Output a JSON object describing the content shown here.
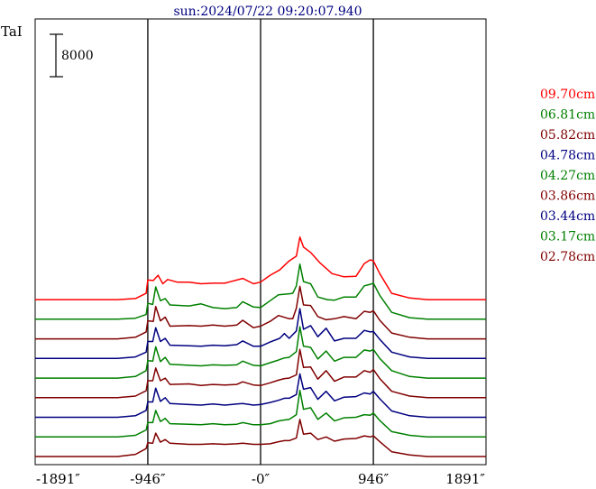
{
  "chart_data": {
    "type": "line",
    "title": "sun:2024/07/22 09:20:07.940",
    "ylabel": "TaI",
    "scale_bar_label": "8000",
    "scale_bar_value": 8000,
    "x_ticks": [
      {
        "value": -1891,
        "label": "-1891″"
      },
      {
        "value": -946,
        "label": "-946″"
      },
      {
        "value": 0,
        "label": "-0″"
      },
      {
        "value": 946,
        "label": "946″"
      },
      {
        "value": 1891,
        "label": "1891″"
      }
    ],
    "xlim": [
      -1891,
      1891
    ],
    "vertical_lines": [
      -946,
      0,
      946
    ],
    "x_hidden_labels": "spectrum offsets are drawn stacked; each successive series is shifted upward",
    "series": [
      {
        "name": "09.70cm",
        "color": "#ff0000",
        "profile": "p1"
      },
      {
        "name": "06.81cm",
        "color": "#008000",
        "profile": "p2"
      },
      {
        "name": "05.82cm",
        "color": "#800000",
        "profile": "p3"
      },
      {
        "name": "04.78cm",
        "color": "#000080",
        "profile": "p4"
      },
      {
        "name": "04.27cm",
        "color": "#008000",
        "profile": "p5"
      },
      {
        "name": "03.86cm",
        "color": "#800000",
        "profile": "p6"
      },
      {
        "name": "03.44cm",
        "color": "#000080",
        "profile": "p7"
      },
      {
        "name": "03.17cm",
        "color": "#008000",
        "profile": "p8"
      },
      {
        "name": "02.78cm",
        "color": "#800000",
        "profile": "p9"
      }
    ],
    "profiles": {
      "p1": [
        [
          -1891,
          0
        ],
        [
          -1200,
          0
        ],
        [
          -1050,
          200
        ],
        [
          -960,
          1200
        ],
        [
          -946,
          3700
        ],
        [
          -900,
          3600
        ],
        [
          -860,
          4600
        ],
        [
          -820,
          3000
        ],
        [
          -780,
          3800
        ],
        [
          -700,
          3300
        ],
        [
          -600,
          3300
        ],
        [
          -500,
          3000
        ],
        [
          -400,
          3100
        ],
        [
          -300,
          3100
        ],
        [
          -150,
          4000
        ],
        [
          -60,
          3000
        ],
        [
          0,
          3300
        ],
        [
          80,
          4600
        ],
        [
          160,
          5600
        ],
        [
          240,
          7300
        ],
        [
          300,
          8200
        ],
        [
          330,
          11800
        ],
        [
          360,
          9900
        ],
        [
          420,
          8900
        ],
        [
          500,
          6900
        ],
        [
          600,
          4900
        ],
        [
          700,
          4300
        ],
        [
          800,
          4400
        ],
        [
          870,
          6800
        ],
        [
          920,
          7500
        ],
        [
          946,
          7300
        ],
        [
          1000,
          4900
        ],
        [
          1100,
          1200
        ],
        [
          1250,
          300
        ],
        [
          1400,
          0
        ],
        [
          1891,
          0
        ]
      ],
      "p2": [
        [
          -1891,
          0
        ],
        [
          -1200,
          0
        ],
        [
          -1050,
          200
        ],
        [
          -960,
          900
        ],
        [
          -946,
          3000
        ],
        [
          -905,
          2800
        ],
        [
          -880,
          6100
        ],
        [
          -840,
          3500
        ],
        [
          -800,
          3900
        ],
        [
          -760,
          2700
        ],
        [
          -600,
          2500
        ],
        [
          -500,
          2900
        ],
        [
          -400,
          2200
        ],
        [
          -300,
          2000
        ],
        [
          -200,
          2200
        ],
        [
          -150,
          3300
        ],
        [
          -60,
          2300
        ],
        [
          0,
          2200
        ],
        [
          80,
          3500
        ],
        [
          150,
          4600
        ],
        [
          240,
          4800
        ],
        [
          270,
          4900
        ],
        [
          300,
          6300
        ],
        [
          330,
          10400
        ],
        [
          360,
          7100
        ],
        [
          420,
          6700
        ],
        [
          480,
          4200
        ],
        [
          560,
          3700
        ],
        [
          620,
          3600
        ],
        [
          700,
          4200
        ],
        [
          800,
          4200
        ],
        [
          870,
          6300
        ],
        [
          920,
          6600
        ],
        [
          946,
          6800
        ],
        [
          1000,
          4500
        ],
        [
          1100,
          1300
        ],
        [
          1250,
          300
        ],
        [
          1400,
          0
        ],
        [
          1891,
          0
        ]
      ],
      "p3": [
        [
          -1891,
          0
        ],
        [
          -1200,
          0
        ],
        [
          -1050,
          300
        ],
        [
          -960,
          1300
        ],
        [
          -946,
          3400
        ],
        [
          -900,
          3300
        ],
        [
          -880,
          6100
        ],
        [
          -840,
          3400
        ],
        [
          -800,
          4100
        ],
        [
          -760,
          2400
        ],
        [
          -600,
          2500
        ],
        [
          -500,
          2400
        ],
        [
          -400,
          2600
        ],
        [
          -300,
          2400
        ],
        [
          -200,
          2600
        ],
        [
          -150,
          3500
        ],
        [
          -60,
          2100
        ],
        [
          0,
          2400
        ],
        [
          80,
          3300
        ],
        [
          150,
          4400
        ],
        [
          240,
          3800
        ],
        [
          270,
          3800
        ],
        [
          300,
          5800
        ],
        [
          330,
          9900
        ],
        [
          360,
          6400
        ],
        [
          420,
          6300
        ],
        [
          480,
          4200
        ],
        [
          550,
          3600
        ],
        [
          620,
          3800
        ],
        [
          700,
          4200
        ],
        [
          800,
          3800
        ],
        [
          870,
          5200
        ],
        [
          920,
          5000
        ],
        [
          946,
          5300
        ],
        [
          1000,
          3500
        ],
        [
          1100,
          1100
        ],
        [
          1250,
          300
        ],
        [
          1400,
          0
        ],
        [
          1891,
          0
        ]
      ],
      "p4": [
        [
          -1891,
          0
        ],
        [
          -1200,
          0
        ],
        [
          -1050,
          300
        ],
        [
          -960,
          1200
        ],
        [
          -946,
          3200
        ],
        [
          -905,
          3200
        ],
        [
          -880,
          5800
        ],
        [
          -840,
          3200
        ],
        [
          -800,
          3800
        ],
        [
          -760,
          2500
        ],
        [
          -600,
          2400
        ],
        [
          -500,
          2300
        ],
        [
          -400,
          2500
        ],
        [
          -300,
          2400
        ],
        [
          -200,
          2600
        ],
        [
          -150,
          3300
        ],
        [
          -60,
          2300
        ],
        [
          0,
          2300
        ],
        [
          80,
          3100
        ],
        [
          160,
          3800
        ],
        [
          200,
          4700
        ],
        [
          240,
          3800
        ],
        [
          300,
          5200
        ],
        [
          330,
          9400
        ],
        [
          360,
          5500
        ],
        [
          420,
          6200
        ],
        [
          480,
          4100
        ],
        [
          550,
          5700
        ],
        [
          620,
          3300
        ],
        [
          700,
          3800
        ],
        [
          800,
          3800
        ],
        [
          870,
          5300
        ],
        [
          920,
          5000
        ],
        [
          946,
          5100
        ],
        [
          1000,
          3600
        ],
        [
          1100,
          1200
        ],
        [
          1250,
          300
        ],
        [
          1400,
          0
        ],
        [
          1891,
          0
        ]
      ],
      "p5": [
        [
          -1891,
          0
        ],
        [
          -1200,
          0
        ],
        [
          -1050,
          300
        ],
        [
          -960,
          1400
        ],
        [
          -946,
          3300
        ],
        [
          -905,
          3200
        ],
        [
          -880,
          5900
        ],
        [
          -840,
          3100
        ],
        [
          -800,
          3900
        ],
        [
          -760,
          2600
        ],
        [
          -600,
          2400
        ],
        [
          -500,
          2300
        ],
        [
          -400,
          2500
        ],
        [
          -300,
          2400
        ],
        [
          -200,
          2500
        ],
        [
          -150,
          3200
        ],
        [
          -60,
          2400
        ],
        [
          0,
          2300
        ],
        [
          80,
          2900
        ],
        [
          150,
          3400
        ],
        [
          200,
          3800
        ],
        [
          240,
          3900
        ],
        [
          300,
          5000
        ],
        [
          330,
          9700
        ],
        [
          360,
          6000
        ],
        [
          420,
          5800
        ],
        [
          480,
          3600
        ],
        [
          550,
          5100
        ],
        [
          620,
          3200
        ],
        [
          700,
          3900
        ],
        [
          800,
          3900
        ],
        [
          870,
          5300
        ],
        [
          920,
          5100
        ],
        [
          946,
          5400
        ],
        [
          1000,
          3700
        ],
        [
          1100,
          1400
        ],
        [
          1250,
          300
        ],
        [
          1400,
          0
        ],
        [
          1891,
          0
        ]
      ],
      "p6": [
        [
          -1891,
          0
        ],
        [
          -1200,
          0
        ],
        [
          -1050,
          300
        ],
        [
          -960,
          1300
        ],
        [
          -946,
          3200
        ],
        [
          -905,
          3200
        ],
        [
          -880,
          5600
        ],
        [
          -840,
          3200
        ],
        [
          -800,
          3700
        ],
        [
          -760,
          2500
        ],
        [
          -600,
          2600
        ],
        [
          -500,
          2300
        ],
        [
          -400,
          2500
        ],
        [
          -300,
          2400
        ],
        [
          -200,
          2500
        ],
        [
          -150,
          3000
        ],
        [
          -60,
          2400
        ],
        [
          0,
          2300
        ],
        [
          80,
          2800
        ],
        [
          150,
          3300
        ],
        [
          200,
          3600
        ],
        [
          240,
          3700
        ],
        [
          300,
          4300
        ],
        [
          330,
          9100
        ],
        [
          360,
          5700
        ],
        [
          420,
          5800
        ],
        [
          480,
          3500
        ],
        [
          550,
          5100
        ],
        [
          620,
          3100
        ],
        [
          700,
          3900
        ],
        [
          800,
          3900
        ],
        [
          870,
          5100
        ],
        [
          920,
          4800
        ],
        [
          946,
          5300
        ],
        [
          1000,
          3600
        ],
        [
          1100,
          1200
        ],
        [
          1250,
          300
        ],
        [
          1400,
          0
        ],
        [
          1891,
          0
        ]
      ],
      "p7": [
        [
          -1891,
          0
        ],
        [
          -1200,
          0
        ],
        [
          -1050,
          300
        ],
        [
          -960,
          1300
        ],
        [
          -946,
          2900
        ],
        [
          -905,
          2900
        ],
        [
          -880,
          5500
        ],
        [
          -840,
          3000
        ],
        [
          -800,
          3700
        ],
        [
          -760,
          2600
        ],
        [
          -600,
          2400
        ],
        [
          -500,
          2300
        ],
        [
          -400,
          2500
        ],
        [
          -300,
          2300
        ],
        [
          -200,
          2500
        ],
        [
          -150,
          2600
        ],
        [
          -60,
          2300
        ],
        [
          0,
          2400
        ],
        [
          80,
          2800
        ],
        [
          150,
          3200
        ],
        [
          200,
          3600
        ],
        [
          240,
          3600
        ],
        [
          300,
          4300
        ],
        [
          330,
          8200
        ],
        [
          360,
          5300
        ],
        [
          420,
          5600
        ],
        [
          480,
          3400
        ],
        [
          550,
          4900
        ],
        [
          620,
          3100
        ],
        [
          700,
          3800
        ],
        [
          800,
          3900
        ],
        [
          870,
          4600
        ],
        [
          920,
          4400
        ],
        [
          946,
          4900
        ],
        [
          1000,
          3500
        ],
        [
          1100,
          1200
        ],
        [
          1250,
          300
        ],
        [
          1400,
          0
        ],
        [
          1891,
          0
        ]
      ],
      "p8": [
        [
          -1891,
          0
        ],
        [
          -1200,
          0
        ],
        [
          -1050,
          300
        ],
        [
          -960,
          1300
        ],
        [
          -946,
          2700
        ],
        [
          -905,
          2700
        ],
        [
          -880,
          5000
        ],
        [
          -840,
          2900
        ],
        [
          -800,
          3500
        ],
        [
          -760,
          2500
        ],
        [
          -600,
          2400
        ],
        [
          -500,
          2300
        ],
        [
          -400,
          2500
        ],
        [
          -300,
          2300
        ],
        [
          -200,
          2400
        ],
        [
          -150,
          2700
        ],
        [
          -60,
          2300
        ],
        [
          0,
          2300
        ],
        [
          80,
          2500
        ],
        [
          150,
          3000
        ],
        [
          200,
          3200
        ],
        [
          240,
          3300
        ],
        [
          300,
          4200
        ],
        [
          330,
          8800
        ],
        [
          360,
          5200
        ],
        [
          420,
          5500
        ],
        [
          480,
          3300
        ],
        [
          550,
          4500
        ],
        [
          620,
          3000
        ],
        [
          700,
          3600
        ],
        [
          800,
          3700
        ],
        [
          870,
          4200
        ],
        [
          920,
          4100
        ],
        [
          946,
          4500
        ],
        [
          1000,
          3100
        ],
        [
          1100,
          1000
        ],
        [
          1250,
          300
        ],
        [
          1400,
          0
        ],
        [
          1891,
          0
        ]
      ],
      "p9": [
        [
          -1891,
          0
        ],
        [
          -1200,
          0
        ],
        [
          -1050,
          400
        ],
        [
          -960,
          1500
        ],
        [
          -946,
          2600
        ],
        [
          -905,
          2500
        ],
        [
          -880,
          4400
        ],
        [
          -840,
          2700
        ],
        [
          -800,
          3200
        ],
        [
          -760,
          2500
        ],
        [
          -600,
          2300
        ],
        [
          -500,
          2300
        ],
        [
          -400,
          2400
        ],
        [
          -300,
          2300
        ],
        [
          -200,
          2400
        ],
        [
          -150,
          2500
        ],
        [
          -60,
          2300
        ],
        [
          0,
          2300
        ],
        [
          80,
          2400
        ],
        [
          150,
          2800
        ],
        [
          200,
          3000
        ],
        [
          240,
          3000
        ],
        [
          300,
          3500
        ],
        [
          330,
          7000
        ],
        [
          360,
          4200
        ],
        [
          420,
          4400
        ],
        [
          480,
          3200
        ],
        [
          550,
          3700
        ],
        [
          620,
          2900
        ],
        [
          700,
          3300
        ],
        [
          800,
          3400
        ],
        [
          870,
          3900
        ],
        [
          920,
          3700
        ],
        [
          946,
          3900
        ],
        [
          1000,
          2800
        ],
        [
          1100,
          900
        ],
        [
          1250,
          300
        ],
        [
          1400,
          0
        ],
        [
          1891,
          0
        ]
      ]
    },
    "series_offset": 3700,
    "grid": false,
    "legend_position": "right"
  }
}
